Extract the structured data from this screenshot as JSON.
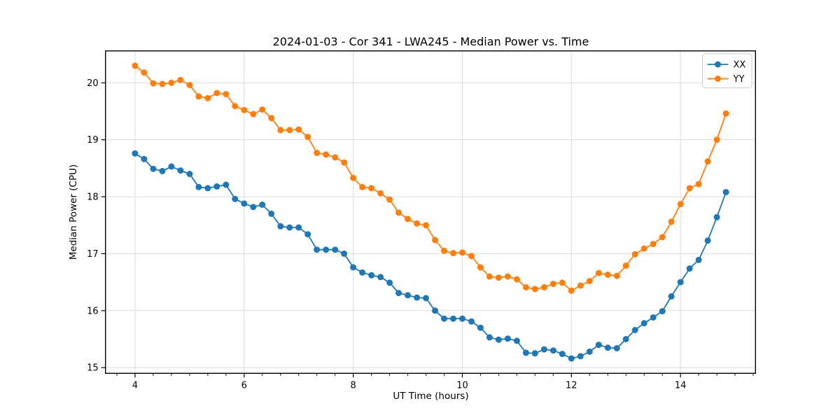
{
  "figure": {
    "title": "2024-01-03 - Cor 341 - LWA245 - Median Power vs. Time",
    "xlabel": "UT Time (hours)",
    "ylabel": "Median Power (CPU)"
  },
  "chart_data": {
    "type": "line",
    "title": "2024-01-03 - Cor 341 - LWA245 - Median Power vs. Time",
    "xlabel": "UT Time (hours)",
    "ylabel": "Median Power (CPU)",
    "xlim": [
      3.458,
      15.375
    ],
    "ylim": [
      14.9,
      20.56
    ],
    "x_major_ticks": [
      4,
      6,
      8,
      10,
      12,
      14
    ],
    "x_minor_tick_step": 0.33333,
    "y_major_ticks": [
      15,
      16,
      17,
      18,
      19,
      20
    ],
    "grid": true,
    "legend_position": "upper right",
    "marker": "circle",
    "x": [
      4.0,
      4.167,
      4.333,
      4.5,
      4.667,
      4.833,
      5.0,
      5.167,
      5.333,
      5.5,
      5.667,
      5.833,
      6.0,
      6.167,
      6.333,
      6.5,
      6.667,
      6.833,
      7.0,
      7.167,
      7.333,
      7.5,
      7.667,
      7.833,
      8.0,
      8.167,
      8.333,
      8.5,
      8.667,
      8.833,
      9.0,
      9.167,
      9.333,
      9.5,
      9.667,
      9.833,
      10.0,
      10.167,
      10.333,
      10.5,
      10.667,
      10.833,
      11.0,
      11.167,
      11.333,
      11.5,
      11.667,
      11.833,
      12.0,
      12.167,
      12.333,
      12.5,
      12.667,
      12.833,
      13.0,
      13.167,
      13.333,
      13.5,
      13.667,
      13.833,
      14.0,
      14.167,
      14.333,
      14.5,
      14.667,
      14.833
    ],
    "series": [
      {
        "name": "XX",
        "color": "#1f77b4",
        "values": [
          18.76,
          18.66,
          18.49,
          18.45,
          18.53,
          18.46,
          18.4,
          18.17,
          18.15,
          18.18,
          18.21,
          17.96,
          17.88,
          17.82,
          17.86,
          17.7,
          17.48,
          17.46,
          17.46,
          17.34,
          17.07,
          17.07,
          17.07,
          17.0,
          16.76,
          16.67,
          16.62,
          16.59,
          16.49,
          16.31,
          16.27,
          16.23,
          16.22,
          16.0,
          15.86,
          15.86,
          15.86,
          15.81,
          15.7,
          15.53,
          15.49,
          15.51,
          15.47,
          15.26,
          15.25,
          15.32,
          15.3,
          15.24,
          15.16,
          15.2,
          15.28,
          15.4,
          15.35,
          15.34,
          15.5,
          15.66,
          15.78,
          15.88,
          15.99,
          16.25,
          16.5,
          16.74,
          16.89,
          17.23,
          17.64,
          18.08
        ]
      },
      {
        "name": "YY",
        "color": "#ff7f0e",
        "values": [
          20.3,
          20.18,
          19.99,
          19.98,
          20.0,
          20.05,
          19.96,
          19.76,
          19.73,
          19.82,
          19.8,
          19.59,
          19.52,
          19.45,
          19.53,
          19.38,
          19.17,
          19.17,
          19.18,
          19.05,
          18.77,
          18.74,
          18.69,
          18.6,
          18.33,
          18.17,
          18.15,
          18.06,
          17.95,
          17.72,
          17.61,
          17.53,
          17.5,
          17.24,
          17.05,
          17.01,
          17.02,
          16.96,
          16.76,
          16.6,
          16.58,
          16.6,
          16.55,
          16.41,
          16.38,
          16.41,
          16.47,
          16.49,
          16.35,
          16.44,
          16.52,
          16.66,
          16.63,
          16.61,
          16.79,
          16.99,
          17.09,
          17.17,
          17.29,
          17.56,
          17.87,
          18.15,
          18.22,
          18.62,
          19.0,
          19.46
        ]
      }
    ]
  }
}
